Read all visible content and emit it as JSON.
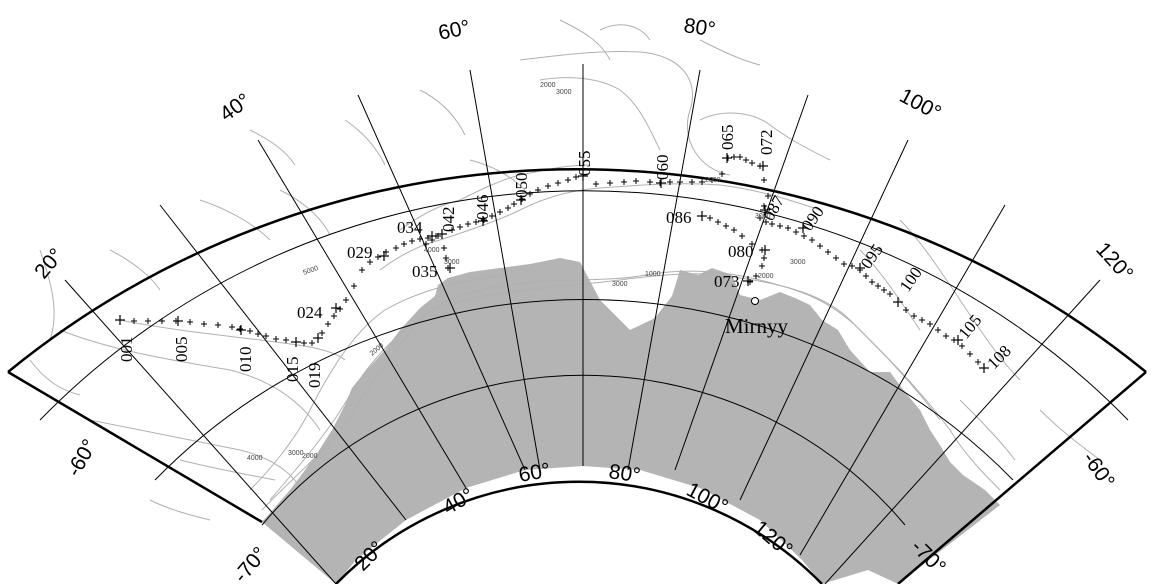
{
  "map": {
    "land_color": "#b4b4b4",
    "contour_color": "#b0b0b0",
    "graticule_color": "#000000",
    "frame_color": "#000000"
  },
  "outer_lon_labels": [
    "20°",
    "40°",
    "60°",
    "80°",
    "100°",
    "120°"
  ],
  "inner_lon_labels": [
    "20°",
    "40°",
    "60°",
    "80°",
    "100°",
    "120°"
  ],
  "lat_labels": {
    "left_inner": "-70°",
    "left_outer": "-60°",
    "right_inner": "-70°",
    "right_outer": "-60°"
  },
  "station_labels": [
    "001",
    "005",
    "010",
    "015",
    "019",
    "024",
    "029",
    "034",
    "035",
    "042",
    "046",
    "050",
    "055",
    "060",
    "065",
    "072",
    "073",
    "080",
    "086",
    "087",
    "090",
    "095",
    "100",
    "105",
    "108"
  ],
  "place": {
    "name": "Mirnyy",
    "marker": "open-circle"
  },
  "contour_labels": [
    "2000",
    "3000",
    "5000",
    "4000",
    "3000",
    "1000",
    "2000",
    "3000",
    "3000",
    "4000",
    "3000",
    "2000",
    "2000",
    "2000",
    "3000"
  ]
}
